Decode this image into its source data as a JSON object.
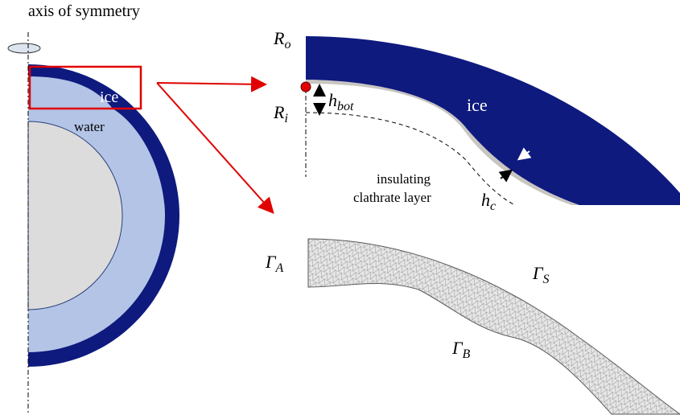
{
  "axis_label": "axis of symmetry",
  "left_panel": {
    "ice_label": "ice",
    "water_label": "water"
  },
  "top_right": {
    "outer_radius": {
      "symbol": "R",
      "subscript": "o"
    },
    "inner_radius": {
      "symbol": "R",
      "subscript": "i"
    },
    "bottom_thickness": {
      "symbol": "h",
      "subscript": "bot"
    },
    "ice_label": "ice",
    "clathrate_label": [
      "insulating",
      "clathrate layer"
    ],
    "clathrate_thickness": {
      "symbol": "h",
      "subscript": "c"
    }
  },
  "mesh": {
    "boundary_a": {
      "symbol": "Γ",
      "subscript": "A"
    },
    "boundary_s": {
      "symbol": "Γ",
      "subscript": "S"
    },
    "boundary_b": {
      "symbol": "Γ",
      "subscript": "B"
    }
  }
}
